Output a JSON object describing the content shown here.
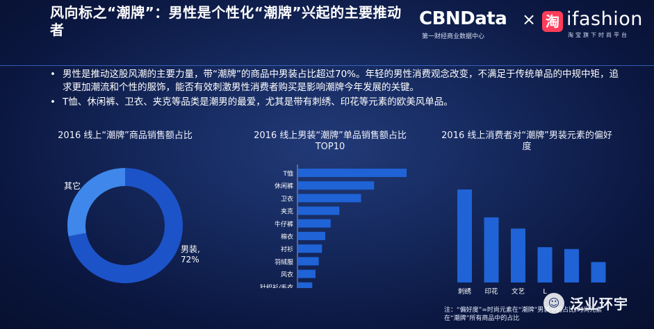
{
  "header": {
    "title": "风向标之“潮牌”：男性是个性化“潮牌”兴起的主要推动者",
    "logo_cbn": "CBNData",
    "logo_cbn_sub": "第一财经商业数据中心",
    "logo_times": "×",
    "logo_tao": "淘",
    "logo_ifashion": "ifashion",
    "logo_ifashion_sub": "淘宝旗下时尚平台"
  },
  "bullets": [
    "男性是推动这股风潮的主要力量，带“潮牌”的商品中男装占比超过70%。年轻的男性消费观念改变，不满足于传统单品的中规中矩，追求更加潮流和个性的服饰，能否有效刺激男性消费者购买是影响潮牌今年发展的关键。",
    "T恤、休闲裤、卫衣、夹克等品类是潮男的最爱，尤其是带有刺绣、印花等元素的欧美风单品。"
  ],
  "colors": {
    "bar": "#1f63d6",
    "donut_main": "#1d53c8",
    "donut_other": "#3f87ea"
  },
  "chart_data": [
    {
      "type": "pie",
      "title": "2016 线上“潮牌”商品销售额占比",
      "labels": [
        "男装",
        "其它"
      ],
      "values": [
        72,
        28
      ],
      "data_labels": [
        "男装, 72%",
        "其它"
      ]
    },
    {
      "type": "bar",
      "orientation": "horizontal",
      "title": "2016 线上男装“潮牌”单品销售额占比TOP10",
      "categories": [
        "T恤",
        "休闲裤",
        "卫衣",
        "夹克",
        "牛仔裤",
        "棉衣",
        "衬衫",
        "羽绒服",
        "风衣",
        "针织衫/毛衣"
      ],
      "values": [
        100,
        70,
        58,
        38,
        30,
        25,
        22,
        19,
        16,
        13
      ]
    },
    {
      "type": "bar",
      "title": "2016 线上消费者对“潮牌”男装元素的偏好度",
      "categories": [
        "刺绣",
        "印花",
        "文艺",
        "L",
        "",
        ""
      ],
      "values": [
        100,
        70,
        58,
        38,
        36,
        22
      ],
      "note": "注：“偏好度”=时尚元素在“潮牌”男装中的占比/时尚元素在“潮牌”所有商品中的占比"
    }
  ],
  "watermark": {
    "icon": "☺",
    "text": "泛业环宇"
  }
}
